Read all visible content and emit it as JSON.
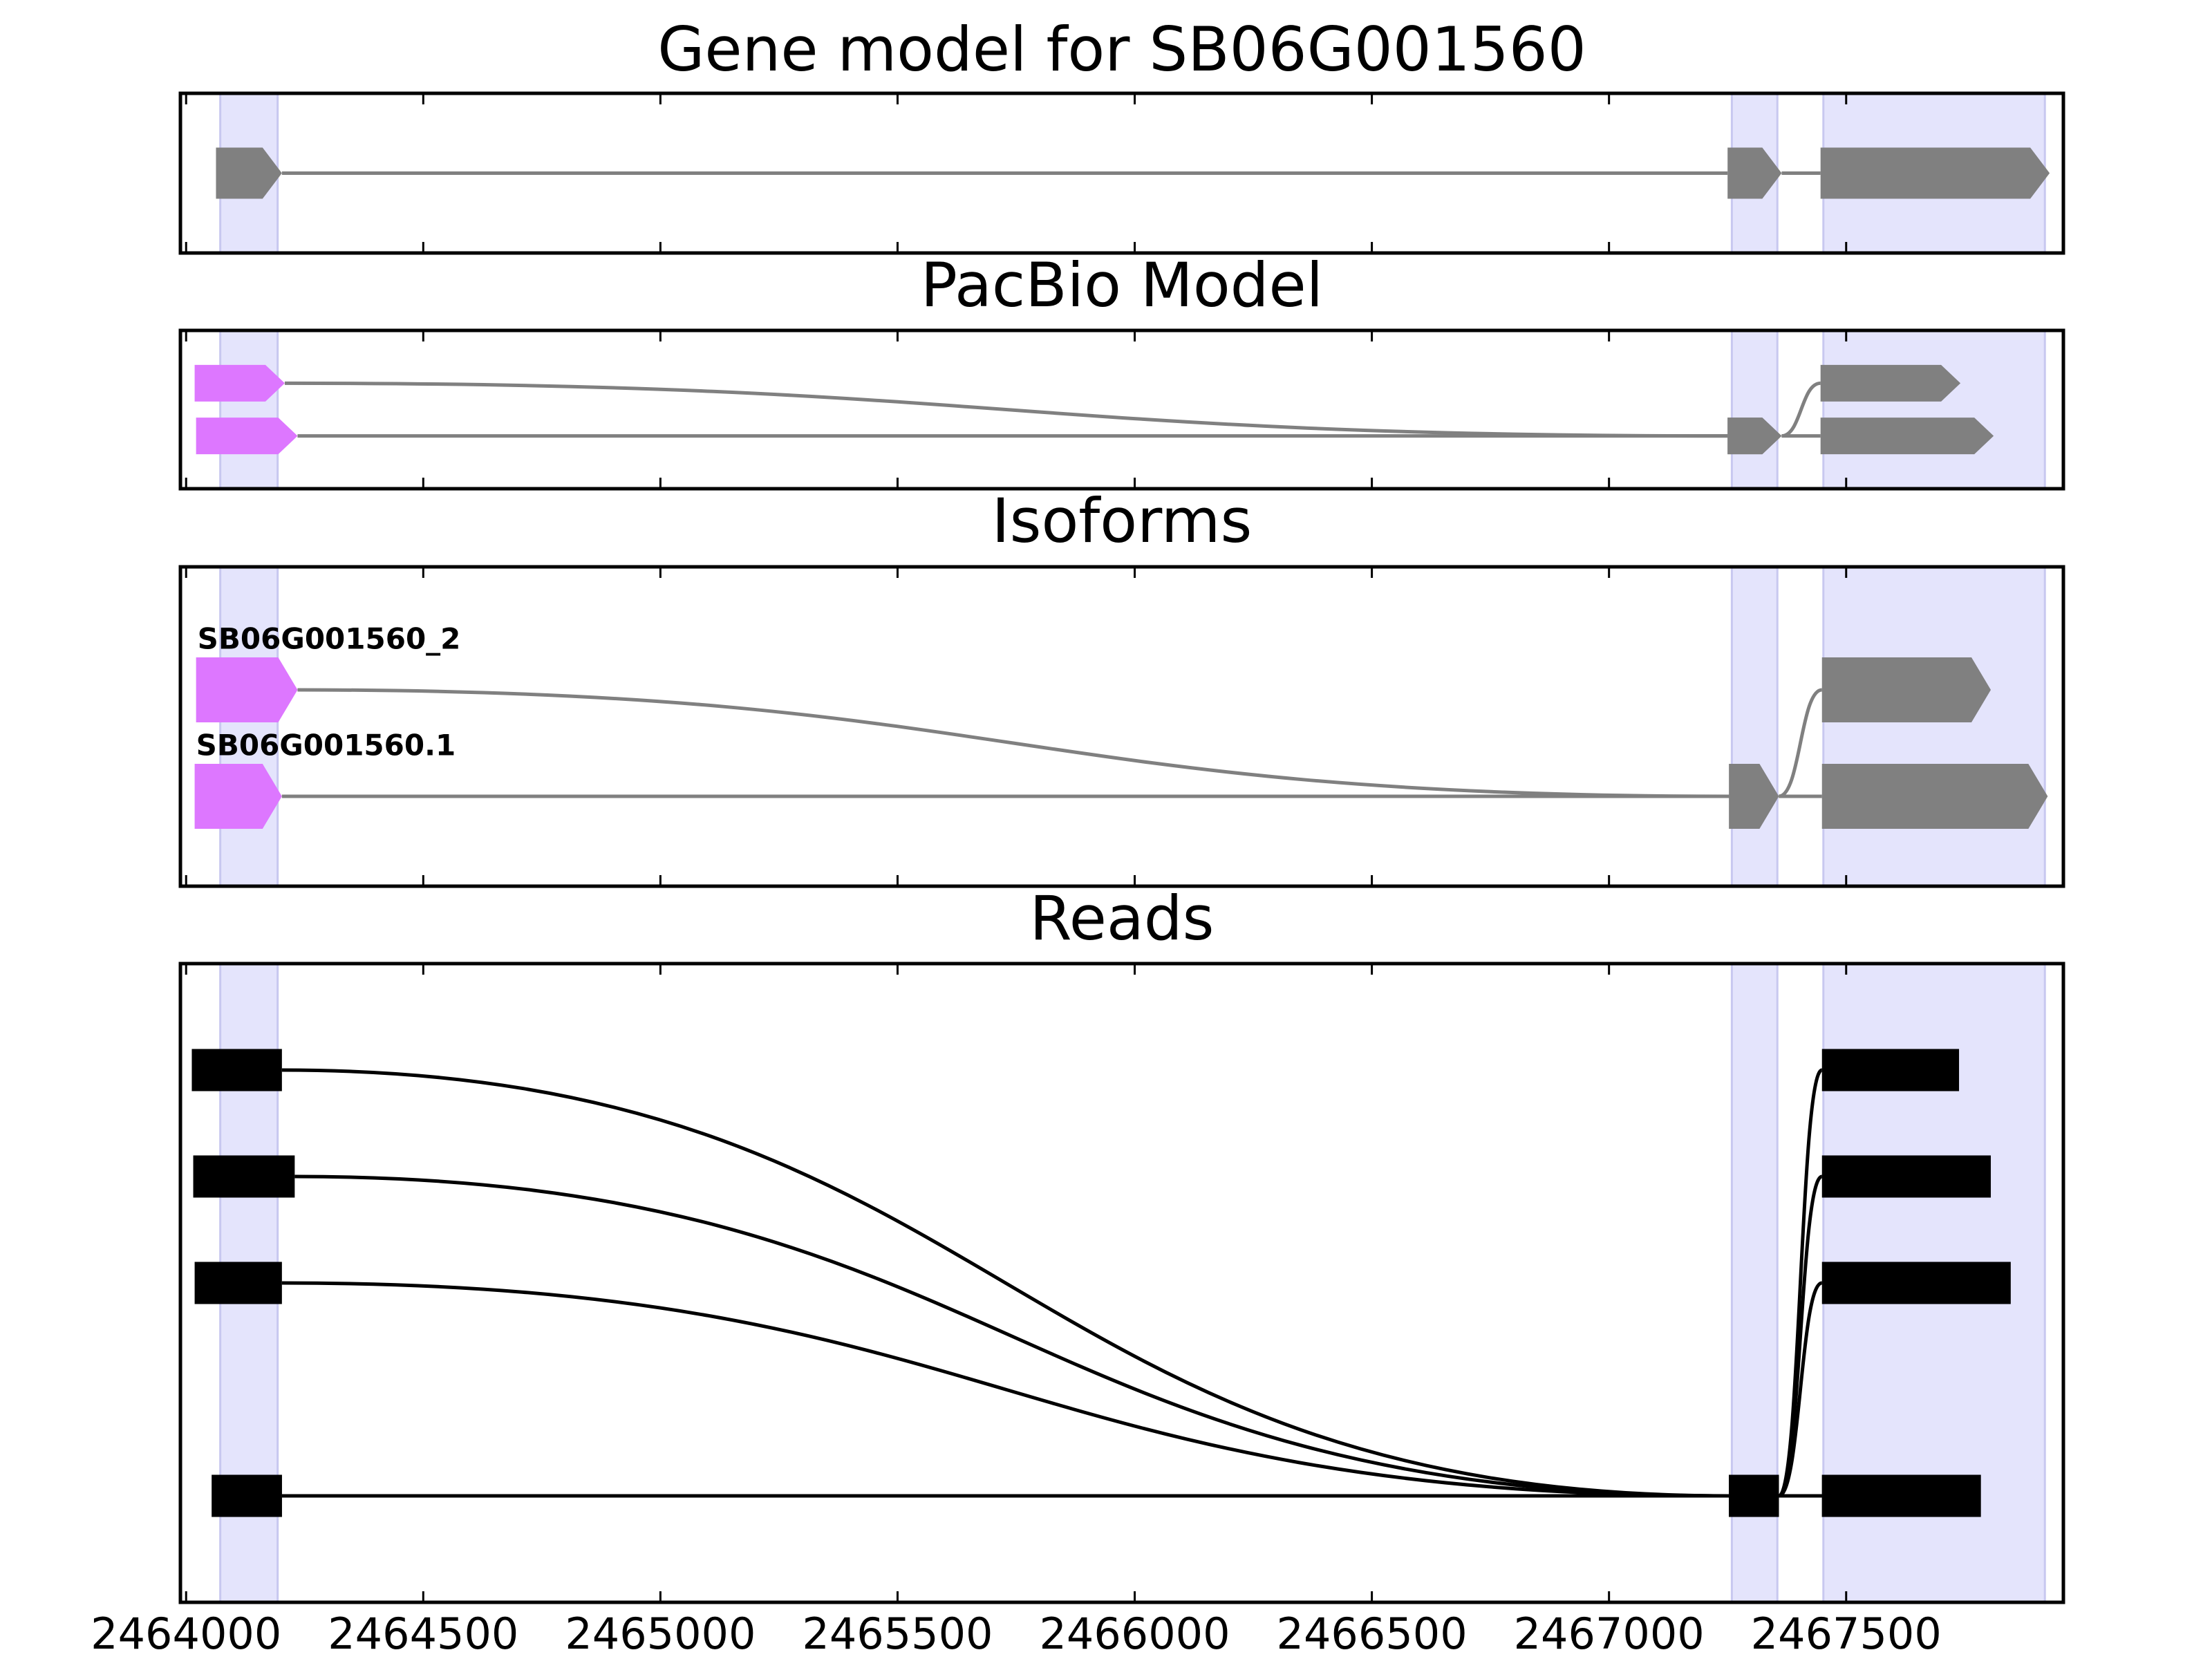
{
  "chart_data": {
    "type": "gene-tracks",
    "xlim": [
      2463988,
      2467958
    ],
    "xticks": [
      2464000,
      2464500,
      2465000,
      2465500,
      2466000,
      2466500,
      2467000,
      2467500
    ],
    "highlight_color": "#e4e4fc",
    "highlights": [
      [
        2464072,
        2464193
      ],
      [
        2467259,
        2467355
      ],
      [
        2467452,
        2467919
      ]
    ],
    "panels": [
      {
        "title": "Gene model for SB06G001560",
        "color": "#808080",
        "arrows": true,
        "transcripts": [
          {
            "exons": [
              [
                2464063,
                2464202
              ],
              [
                2467250,
                2467364
              ],
              [
                2467446,
                2467929
              ]
            ]
          }
        ]
      },
      {
        "title": "PacBio Model",
        "color": "#808080",
        "start_color": "#dd77ff",
        "arrows": true,
        "transcripts": [
          {
            "exons": [
              [
                2464018,
                2464208
              ],
              [
                2467250,
                2467364
              ],
              [
                2467446,
                2467741
              ]
            ]
          },
          {
            "exons": [
              [
                2464021,
                2464235
              ],
              [
                2467250,
                2467364
              ],
              [
                2467446,
                2467811
              ]
            ]
          }
        ]
      },
      {
        "title": "Isoforms",
        "color": "#808080",
        "start_color": "#dd77ff",
        "arrows": true,
        "transcripts": [
          {
            "label": "SB06G001560_2",
            "exons": [
              [
                2464021,
                2464235
              ],
              [
                2467253,
                2467358
              ],
              [
                2467449,
                2467805
              ]
            ]
          },
          {
            "label": "SB06G001560.1",
            "exons": [
              [
                2464018,
                2464202
              ],
              [
                2467253,
                2467358
              ],
              [
                2467449,
                2467925
              ]
            ]
          }
        ]
      },
      {
        "title": "Reads",
        "color": "#000000",
        "arrows": false,
        "transcripts": [
          {
            "exons": [
              [
                2464012,
                2464202
              ],
              [
                2467253,
                2467358
              ],
              [
                2467449,
                2467738
              ]
            ]
          },
          {
            "exons": [
              [
                2464015,
                2464229
              ],
              [
                2467253,
                2467358
              ],
              [
                2467449,
                2467805
              ]
            ]
          },
          {
            "exons": [
              [
                2464018,
                2464202
              ],
              [
                2467253,
                2467358
              ],
              [
                2467449,
                2467847
              ]
            ]
          },
          {
            "exons": [
              [
                2464054,
                2464202
              ],
              [
                2467253,
                2467358
              ],
              [
                2467449,
                2467784
              ]
            ]
          },
          {
            "exons": [
              [
                2464054,
                2464202
              ],
              [
                2467253,
                2467358
              ],
              [
                2467449,
                2467784
              ]
            ]
          }
        ]
      }
    ]
  }
}
